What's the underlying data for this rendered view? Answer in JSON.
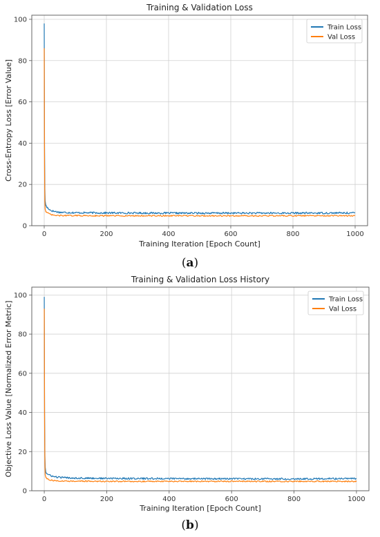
{
  "chart_data": [
    {
      "type": "line",
      "title": "Training & Validation Loss",
      "xlabel": "Training Iteration [Epoch Count]",
      "ylabel": "Cross-Entropy Loss [Error Value]",
      "xlim": [
        -40,
        1040
      ],
      "ylim": [
        0,
        102
      ],
      "xticks": [
        0,
        200,
        400,
        600,
        800,
        1000
      ],
      "yticks": [
        0,
        20,
        40,
        60,
        80,
        100
      ],
      "grid": true,
      "legend_position": "top-right",
      "series": [
        {
          "name": "Train Loss",
          "color": "#1f77b4",
          "x": [
            0,
            1,
            2,
            3,
            5,
            8,
            12,
            20,
            30,
            50,
            100,
            200,
            400,
            600,
            800,
            1000
          ],
          "y": [
            98,
            40,
            18,
            12,
            10,
            9,
            8.5,
            7.5,
            7,
            6.5,
            6.3,
            6.2,
            6.1,
            6.1,
            6.1,
            6.2
          ]
        },
        {
          "name": "Val Loss",
          "color": "#ff7f0e",
          "x": [
            0,
            1,
            2,
            3,
            5,
            8,
            12,
            20,
            30,
            50,
            100,
            200,
            400,
            600,
            800,
            1000
          ],
          "y": [
            86,
            30,
            12,
            8,
            7,
            6.5,
            6,
            5.5,
            5,
            4.9,
            4.9,
            4.8,
            4.8,
            4.8,
            4.8,
            4.8
          ]
        }
      ]
    },
    {
      "type": "line",
      "title": "Training & Validation Loss History",
      "xlabel": "Training Iteration [Epoch Count]",
      "ylabel": "Objective Loss Value [Normalized Error Metric]",
      "xlim": [
        -40,
        1040
      ],
      "ylim": [
        0,
        104
      ],
      "xticks": [
        0,
        200,
        400,
        600,
        800,
        1000
      ],
      "yticks": [
        0,
        20,
        40,
        60,
        80,
        100
      ],
      "grid": true,
      "legend_position": "top-right",
      "series": [
        {
          "name": "Train Loss",
          "color": "#1f77b4",
          "x": [
            0,
            1,
            2,
            3,
            5,
            8,
            12,
            20,
            30,
            50,
            100,
            200,
            400,
            600,
            800,
            1000
          ],
          "y": [
            99,
            40,
            18,
            12,
            9.5,
            8.8,
            8.2,
            7.8,
            7.2,
            6.8,
            6.5,
            6.3,
            6.2,
            6.1,
            6.1,
            6.2
          ]
        },
        {
          "name": "Val Loss",
          "color": "#ff7f0e",
          "x": [
            0,
            1,
            2,
            3,
            5,
            8,
            12,
            20,
            30,
            50,
            100,
            200,
            400,
            600,
            800,
            1000
          ],
          "y": [
            93,
            35,
            14,
            8,
            7,
            6.2,
            5.8,
            5.5,
            5.2,
            5,
            4.9,
            4.8,
            4.8,
            4.8,
            4.8,
            4.8
          ]
        }
      ]
    }
  ],
  "captions": [
    {
      "paren_open": "(",
      "letter": "a",
      "paren_close": ")"
    },
    {
      "paren_open": "(",
      "letter": "b",
      "paren_close": ")"
    }
  ]
}
